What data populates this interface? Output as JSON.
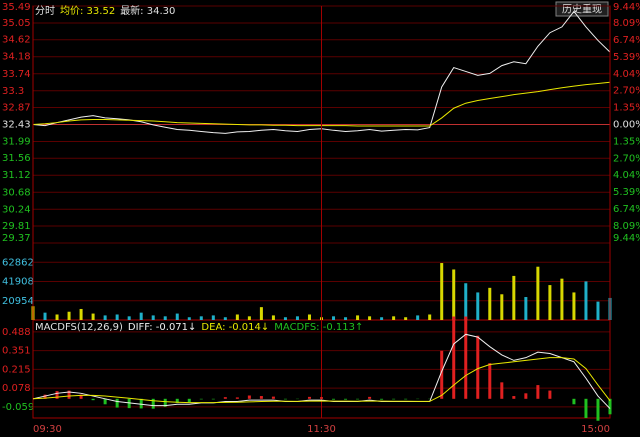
{
  "chart_data": [
    {
      "type": "line",
      "title": "分时",
      "annotations": [
        {
          "text": "均价: 33.52",
          "color": "#e8e800"
        },
        {
          "text": "最新: 34.30",
          "color": "#e0e0e0"
        }
      ],
      "button": "历史重现",
      "x": [
        0,
        5,
        10,
        15,
        20,
        25,
        30,
        35,
        40,
        45,
        50,
        55,
        60,
        65,
        70,
        75,
        80,
        85,
        90,
        95,
        100,
        105,
        110,
        115,
        120,
        125,
        130,
        135,
        140,
        145,
        150,
        155,
        160,
        165,
        170,
        175,
        180,
        185,
        190,
        195,
        200,
        205,
        210,
        215,
        220,
        225,
        230,
        235,
        240
      ],
      "xlim": [
        0,
        240
      ],
      "series": [
        {
          "name": "价格",
          "color": "#f0f0f0",
          "values": [
            32.43,
            32.4,
            32.48,
            32.55,
            32.62,
            32.66,
            32.6,
            32.58,
            32.55,
            32.5,
            32.42,
            32.36,
            32.3,
            32.28,
            32.25,
            32.22,
            32.2,
            32.24,
            32.25,
            32.28,
            32.3,
            32.27,
            32.25,
            32.3,
            32.32,
            32.28,
            32.25,
            32.27,
            32.3,
            32.26,
            32.28,
            32.3,
            32.29,
            32.35,
            33.4,
            33.9,
            33.8,
            33.7,
            33.75,
            33.95,
            34.05,
            34.0,
            34.45,
            34.8,
            34.95,
            35.35,
            34.95,
            34.6,
            34.3
          ]
        },
        {
          "name": "均价",
          "color": "#e8e800",
          "values": [
            32.43,
            32.45,
            32.48,
            32.52,
            32.55,
            32.56,
            32.56,
            32.55,
            32.54,
            32.53,
            32.52,
            32.5,
            32.48,
            32.47,
            32.46,
            32.45,
            32.44,
            32.43,
            32.42,
            32.42,
            32.41,
            32.41,
            32.4,
            32.4,
            32.4,
            32.4,
            32.4,
            32.39,
            32.39,
            32.39,
            32.39,
            32.39,
            32.39,
            32.39,
            32.6,
            32.85,
            32.98,
            33.05,
            33.1,
            33.15,
            33.2,
            33.24,
            33.28,
            33.33,
            33.38,
            33.42,
            33.46,
            33.49,
            33.52
          ]
        }
      ],
      "ylim": [
        29.37,
        35.49
      ],
      "yticks": [
        35.49,
        35.05,
        34.62,
        34.18,
        33.74,
        33.3,
        32.87,
        32.43,
        31.99,
        31.56,
        31.12,
        30.68,
        30.24,
        29.81,
        29.37
      ],
      "y2lim": [
        -9.44,
        9.44
      ],
      "y2ticks": [
        {
          "value": 9.44,
          "label": "9.44%"
        },
        {
          "value": 8.09,
          "label": "8.09%"
        },
        {
          "value": 6.74,
          "label": "6.74%"
        },
        {
          "value": 5.39,
          "label": "5.39%"
        },
        {
          "value": 4.04,
          "label": "4.04%"
        },
        {
          "value": 2.7,
          "label": "2.70%"
        },
        {
          "value": 1.35,
          "label": "1.35%"
        },
        {
          "value": 0,
          "label": "0.00%"
        },
        {
          "value": -1.35,
          "label": "1.35%"
        },
        {
          "value": -2.7,
          "label": "2.70%"
        },
        {
          "value": -4.04,
          "label": "4.04%"
        },
        {
          "value": -5.39,
          "label": "5.39%"
        },
        {
          "value": -6.74,
          "label": "6.74%"
        },
        {
          "value": -8.09,
          "label": "8.09%"
        },
        {
          "value": -9.44,
          "label": "9.44%"
        }
      ],
      "up_color": "#e02020",
      "down_color": "#20c020",
      "zero_color": "#e0e0e0",
      "grid": true,
      "grid_color": "#5a0000",
      "base_color": "#c03030"
    },
    {
      "type": "bar",
      "x": [
        0,
        5,
        10,
        15,
        20,
        25,
        30,
        35,
        40,
        45,
        50,
        55,
        60,
        65,
        70,
        75,
        80,
        85,
        90,
        95,
        100,
        105,
        110,
        115,
        120,
        125,
        130,
        135,
        140,
        145,
        150,
        155,
        160,
        165,
        170,
        175,
        180,
        185,
        190,
        195,
        200,
        205,
        210,
        215,
        220,
        225,
        230,
        235,
        240
      ],
      "xlim": [
        0,
        240
      ],
      "series": [
        {
          "name": "成交量",
          "values": [
            15000,
            8000,
            6000,
            9000,
            12000,
            7000,
            5000,
            6000,
            4000,
            8000,
            5000,
            4000,
            7000,
            3000,
            4000,
            5000,
            3000,
            6000,
            4000,
            14000,
            5000,
            3000,
            4000,
            6000,
            3000,
            4000,
            3000,
            5000,
            4000,
            3000,
            4000,
            3000,
            5000,
            6000,
            62000,
            55000,
            40000,
            30000,
            35000,
            28000,
            48000,
            25000,
            58000,
            38000,
            45000,
            30000,
            42000,
            20000,
            24000
          ]
        }
      ],
      "ylim": [
        0,
        83816
      ],
      "yticks": [
        62862,
        41908,
        20954
      ],
      "tick_color": "#40c0e0",
      "up_color": "#d8d800",
      "down_color": "#20b0c8",
      "grid": true,
      "grid_color": "#5a0000"
    },
    {
      "type": "combo",
      "title": "MACDFS(12,26,9)",
      "annotations": [
        {
          "text": "DIFF: -0.071↓",
          "color": "#f0f0f0"
        },
        {
          "text": "DEA: -0.014↓",
          "color": "#e8e800"
        },
        {
          "text": "MACDFS: -0.113↑",
          "color": "#20c020"
        }
      ],
      "x": [
        0,
        5,
        10,
        15,
        20,
        25,
        30,
        35,
        40,
        45,
        50,
        55,
        60,
        65,
        70,
        75,
        80,
        85,
        90,
        95,
        100,
        105,
        110,
        115,
        120,
        125,
        130,
        135,
        140,
        145,
        150,
        155,
        160,
        165,
        170,
        175,
        180,
        185,
        190,
        195,
        200,
        205,
        210,
        215,
        220,
        225,
        230,
        235,
        240
      ],
      "xlim": [
        0,
        240
      ],
      "xticks": [
        {
          "value": 0,
          "label": "09:30"
        },
        {
          "value": 120,
          "label": "11:30"
        },
        {
          "value": 240,
          "label": "15:00"
        }
      ],
      "series": [
        {
          "name": "MACDFS",
          "type": "bar",
          "values": [
            0,
            0.03,
            0.056,
            0.06,
            0.03,
            -0.01,
            -0.04,
            -0.064,
            -0.068,
            -0.07,
            -0.072,
            -0.058,
            -0.03,
            -0.024,
            -0.004,
            -0.004,
            0.012,
            0.01,
            0.024,
            0.02,
            0.016,
            -0.004,
            -0.002,
            0.014,
            0.012,
            -0.006,
            -0.006,
            -0.004,
            0.014,
            -0.006,
            -0.004,
            -0.004,
            -0.002,
            -0.002,
            0.35,
            0.6,
            0.6,
            0.46,
            0.26,
            0.12,
            0.02,
            0.04,
            0.1,
            0.06,
            0,
            -0.04,
            -0.14,
            -0.16,
            -0.113
          ]
        },
        {
          "name": "DIFF",
          "type": "line",
          "color": "#f0f0f0",
          "values": [
            0,
            0.02,
            0.04,
            0.05,
            0.04,
            0.02,
            0,
            -0.02,
            -0.03,
            -0.04,
            -0.05,
            -0.05,
            -0.04,
            -0.04,
            -0.03,
            -0.03,
            -0.02,
            -0.02,
            -0.01,
            -0.01,
            -0.01,
            -0.02,
            -0.02,
            -0.01,
            -0.01,
            -0.02,
            -0.02,
            -0.02,
            -0.01,
            -0.02,
            -0.02,
            -0.02,
            -0.02,
            -0.02,
            0.2,
            0.4,
            0.47,
            0.45,
            0.38,
            0.32,
            0.28,
            0.3,
            0.34,
            0.33,
            0.3,
            0.27,
            0.15,
            0.02,
            -0.071
          ]
        },
        {
          "name": "DEA",
          "type": "line",
          "color": "#e8e800",
          "values": [
            0,
            0.005,
            0.012,
            0.02,
            0.025,
            0.025,
            0.02,
            0.012,
            0.004,
            -0.005,
            -0.014,
            -0.021,
            -0.025,
            -0.028,
            -0.028,
            -0.028,
            -0.026,
            -0.025,
            -0.022,
            -0.02,
            -0.018,
            -0.018,
            -0.019,
            -0.017,
            -0.016,
            -0.017,
            -0.017,
            -0.018,
            -0.017,
            -0.017,
            -0.018,
            -0.018,
            -0.019,
            -0.019,
            0.025,
            0.1,
            0.17,
            0.22,
            0.25,
            0.26,
            0.27,
            0.28,
            0.29,
            0.3,
            0.3,
            0.29,
            0.22,
            0.1,
            -0.014
          ]
        }
      ],
      "ylim": [
        -0.14,
        0.56
      ],
      "yticks": [
        0.488,
        0.351,
        0.215,
        0.078,
        -0.059
      ],
      "up_color": "#e02020",
      "down_color": "#20c020",
      "zero_color": "#e0e0e0",
      "grid": true,
      "grid_color": "#5a0000",
      "xtick_color": "#d04040"
    }
  ]
}
